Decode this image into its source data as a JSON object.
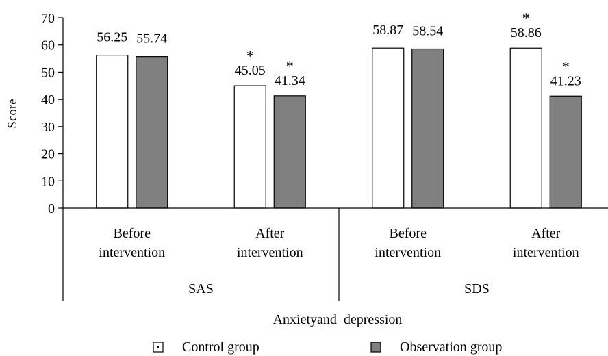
{
  "chart_data": {
    "type": "bar",
    "title": "",
    "xlabel": "Anxietyand  depression",
    "ylabel": "Score",
    "ylim": [
      0,
      70
    ],
    "yticks": [
      0,
      10,
      20,
      30,
      40,
      50,
      60,
      70
    ],
    "groups": [
      {
        "label": "SAS",
        "categories": [
          "Before intervention",
          "After intervention"
        ]
      },
      {
        "label": "SDS",
        "categories": [
          "Before intervention",
          "After intervention"
        ]
      }
    ],
    "category_lines": [
      [
        "Before",
        "intervention"
      ],
      [
        "After",
        "intervention"
      ]
    ],
    "series": [
      {
        "name": "Control group",
        "values": [
          56.25,
          45.05,
          58.87,
          58.86
        ],
        "labels": [
          "56.25",
          "45.05",
          "58.87",
          "58.86"
        ],
        "color": "#ffffff"
      },
      {
        "name": "Observation group",
        "values": [
          55.74,
          41.34,
          58.54,
          41.23
        ],
        "labels": [
          "55.74",
          "41.34",
          "58.54",
          "41.23"
        ],
        "color": "#808080"
      }
    ],
    "significance_marker": "*",
    "significant": [
      [
        false,
        true,
        false,
        true
      ],
      [
        false,
        true,
        false,
        true
      ]
    ],
    "grid": false,
    "legend_position": "bottom"
  }
}
